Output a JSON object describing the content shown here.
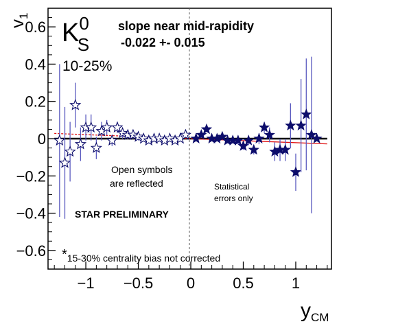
{
  "chart_data": {
    "type": "scatter",
    "xlabel": "y",
    "xlabel_sub": "CM",
    "ylabel": "v",
    "ylabel_sub": "1",
    "xlim": [
      -1.36,
      1.34
    ],
    "ylim": [
      -0.7,
      0.7
    ],
    "xticks": [
      -1,
      -0.5,
      0,
      0.5,
      1
    ],
    "xtick_labels": [
      "−1",
      "−0.5",
      "0",
      "0.5",
      "1"
    ],
    "yticks": [
      -0.6,
      -0.4,
      -0.2,
      0,
      0.2,
      0.4,
      0.6
    ],
    "ytick_labels": [
      "−0.6",
      "−0.4",
      "−0.2",
      "0",
      "0.2",
      "0.4",
      "0.6"
    ],
    "grid": false,
    "series": [
      {
        "name": "filled symbols",
        "marker": "filled-star",
        "color": "#0d0d6b",
        "x": [
          0.05,
          0.1,
          0.15,
          0.2,
          0.25,
          0.3,
          0.35,
          0.4,
          0.45,
          0.5,
          0.55,
          0.6,
          0.65,
          0.7,
          0.75,
          0.8,
          0.85,
          0.9,
          0.95,
          1.0,
          1.05,
          1.1,
          1.15,
          1.2
        ],
        "y": [
          0.0,
          0.02,
          0.05,
          0.0,
          0.0,
          0.01,
          -0.01,
          -0.01,
          -0.01,
          -0.04,
          -0.01,
          -0.06,
          0.0,
          0.06,
          0.02,
          -0.07,
          -0.06,
          -0.06,
          0.07,
          -0.18,
          0.07,
          0.13,
          0.02,
          0.0
        ],
        "err": [
          0.01,
          0.01,
          0.01,
          0.012,
          0.012,
          0.012,
          0.015,
          0.015,
          0.02,
          0.02,
          0.025,
          0.025,
          0.03,
          0.03,
          0.04,
          0.05,
          0.06,
          0.06,
          0.12,
          0.1,
          0.25,
          0.3,
          0.42,
          0.0
        ]
      },
      {
        "name": "open symbols",
        "marker": "open-star",
        "color": "#0d0d6b",
        "x": [
          -1.25,
          -1.2,
          -1.15,
          -1.1,
          -1.05,
          -1.0,
          -0.95,
          -0.9,
          -0.85,
          -0.8,
          -0.75,
          -0.7,
          -0.65,
          -0.6,
          -0.55,
          -0.5,
          -0.45,
          -0.4,
          -0.35,
          -0.3,
          -0.25,
          -0.2,
          -0.15,
          -0.1,
          -0.05
        ],
        "y": [
          -0.01,
          -0.13,
          -0.07,
          0.18,
          -0.03,
          0.06,
          0.06,
          -0.05,
          0.04,
          0.06,
          -0.01,
          0.06,
          0.03,
          0.02,
          0.02,
          0.01,
          0.0,
          -0.01,
          0.0,
          0.0,
          -0.01,
          0.0,
          -0.01,
          0.0,
          0.02
        ],
        "err": [
          0.41,
          0.3,
          0.16,
          0.12,
          0.09,
          0.07,
          0.07,
          0.06,
          0.05,
          0.04,
          0.03,
          0.03,
          0.03,
          0.025,
          0.02,
          0.02,
          0.015,
          0.015,
          0.012,
          0.012,
          0.01,
          0.01,
          0.01,
          0.01,
          0.01
        ]
      }
    ],
    "fit_lines": [
      {
        "color": "#000000",
        "style": "solid",
        "x": [
          -1.3,
          1.3
        ],
        "y": [
          0.0,
          0.0
        ]
      },
      {
        "color": "#e01010",
        "style": "solid",
        "x": [
          0.0,
          1.3
        ],
        "y": [
          0.0,
          -0.028
        ]
      },
      {
        "color": "#e01010",
        "style": "dashed",
        "x": [
          -1.3,
          0.0
        ],
        "y": [
          0.028,
          0.0
        ]
      }
    ]
  },
  "annotations": {
    "particle_main": "K",
    "particle_sup": "0",
    "particle_sub": "S",
    "centrality": "10-25%",
    "slope_title": "slope near mid-rapidity",
    "slope_value": "-0.022 +- 0.015",
    "open_symbols_line1": "Open symbols",
    "open_symbols_line2": "are reflected",
    "stat_line1": "Statistical",
    "stat_line2": "errors only",
    "preliminary": "STAR PRELIMINARY",
    "footnote_star": "*",
    "footnote_text": "15-30% centrality bias not corrected"
  }
}
